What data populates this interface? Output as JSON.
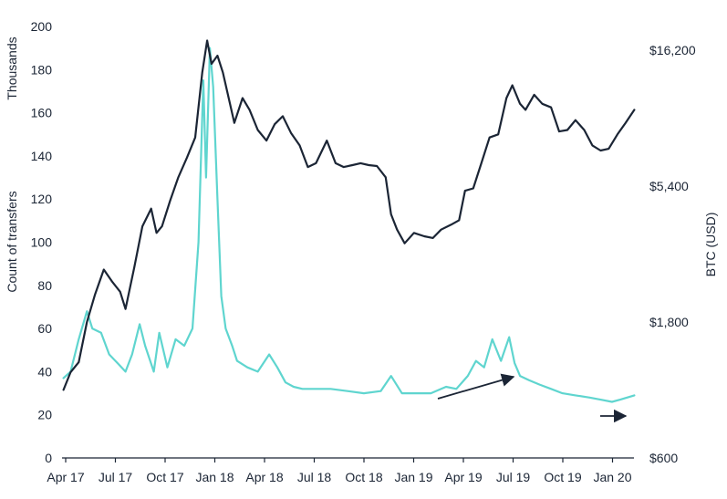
{
  "chart_data": {
    "type": "line",
    "x_ticks": [
      "Apr 17",
      "Jul 17",
      "Oct 17",
      "Jan 18",
      "Apr 18",
      "Jul 18",
      "Oct 18",
      "Jan 19",
      "Apr 19",
      "Jul 19",
      "Oct 19",
      "Jan 20"
    ],
    "y_left": {
      "unit_label": "Thousands",
      "label": "Count of transfers",
      "ticks": [
        "0",
        "20",
        "40",
        "60",
        "80",
        "100",
        "120",
        "140",
        "160",
        "180",
        "200"
      ],
      "range": [
        0,
        200
      ]
    },
    "y_right": {
      "label": "BTC (USD)",
      "scale": "log",
      "ticks": [
        "$600",
        "$1,800",
        "$5,400",
        "$16,200"
      ],
      "range": [
        600,
        16200
      ]
    },
    "grid": false,
    "series": [
      {
        "axis": "right",
        "color": "#1b2535",
        "x": [
          "2017-03-28",
          "2017-04-10",
          "2017-04-25",
          "2017-05-10",
          "2017-05-25",
          "2017-06-10",
          "2017-06-25",
          "2017-07-10",
          "2017-07-20",
          "2017-08-05",
          "2017-08-20",
          "2017-09-05",
          "2017-09-15",
          "2017-09-25",
          "2017-10-10",
          "2017-10-25",
          "2017-11-10",
          "2017-11-25",
          "2017-12-08",
          "2017-12-17",
          "2017-12-25",
          "2018-01-05",
          "2018-01-15",
          "2018-02-05",
          "2018-02-20",
          "2018-03-05",
          "2018-03-20",
          "2018-04-05",
          "2018-04-20",
          "2018-05-05",
          "2018-05-20",
          "2018-06-05",
          "2018-06-20",
          "2018-07-05",
          "2018-07-25",
          "2018-08-10",
          "2018-08-25",
          "2018-09-10",
          "2018-09-25",
          "2018-10-10",
          "2018-10-25",
          "2018-11-10",
          "2018-11-20",
          "2018-12-01",
          "2018-12-15",
          "2019-01-01",
          "2019-01-20",
          "2019-02-05",
          "2019-02-20",
          "2019-03-10",
          "2019-03-25",
          "2019-04-05",
          "2019-04-20",
          "2019-05-05",
          "2019-05-20",
          "2019-06-05",
          "2019-06-20",
          "2019-07-01",
          "2019-07-15",
          "2019-07-25",
          "2019-08-10",
          "2019-08-25",
          "2019-09-10",
          "2019-09-25",
          "2019-10-10",
          "2019-10-25",
          "2019-11-10",
          "2019-11-25",
          "2019-12-10",
          "2019-12-25",
          "2020-01-10",
          "2020-01-25",
          "2020-02-10"
        ],
        "values": [
          1040,
          1200,
          1300,
          1800,
          2250,
          2750,
          2500,
          2300,
          2000,
          2800,
          3900,
          4500,
          3700,
          3900,
          4800,
          5800,
          6800,
          8000,
          13500,
          17500,
          14500,
          15500,
          13500,
          9000,
          11000,
          10000,
          8500,
          7800,
          8900,
          9500,
          8300,
          7500,
          6300,
          6500,
          7800,
          6500,
          6300,
          6400,
          6500,
          6400,
          6350,
          5800,
          4300,
          3800,
          3400,
          3700,
          3600,
          3550,
          3800,
          3950,
          4100,
          5200,
          5300,
          6500,
          8000,
          8200,
          11000,
          12200,
          10500,
          10000,
          11300,
          10500,
          10200,
          8400,
          8500,
          9200,
          8500,
          7500,
          7200,
          7300,
          8200,
          9000,
          10000
        ]
      },
      {
        "axis": "left",
        "color": "#5fd5cf",
        "x": [
          "2017-03-28",
          "2017-04-10",
          "2017-04-25",
          "2017-05-10",
          "2017-05-20",
          "2017-06-05",
          "2017-06-20",
          "2017-07-05",
          "2017-07-20",
          "2017-08-01",
          "2017-08-15",
          "2017-08-25",
          "2017-09-10",
          "2017-09-20",
          "2017-10-05",
          "2017-10-20",
          "2017-11-05",
          "2017-11-20",
          "2017-12-01",
          "2017-12-10",
          "2017-12-15",
          "2017-12-22",
          "2017-12-28",
          "2018-01-05",
          "2018-01-12",
          "2018-01-20",
          "2018-02-01",
          "2018-02-10",
          "2018-03-01",
          "2018-03-20",
          "2018-04-10",
          "2018-04-25",
          "2018-05-10",
          "2018-05-25",
          "2018-06-10",
          "2018-07-01",
          "2018-08-01",
          "2018-09-01",
          "2018-10-01",
          "2018-11-01",
          "2018-11-20",
          "2018-12-10",
          "2019-01-01",
          "2019-02-01",
          "2019-03-01",
          "2019-03-20",
          "2019-04-10",
          "2019-04-25",
          "2019-05-10",
          "2019-05-25",
          "2019-06-10",
          "2019-06-25",
          "2019-07-05",
          "2019-07-15",
          "2019-08-01",
          "2019-08-20",
          "2019-09-10",
          "2019-10-01",
          "2019-10-25",
          "2019-11-20",
          "2019-12-10",
          "2019-12-31",
          "2020-01-15",
          "2020-02-10"
        ],
        "values": [
          37,
          40,
          55,
          68,
          60,
          58,
          48,
          44,
          40,
          48,
          62,
          52,
          40,
          58,
          42,
          55,
          52,
          60,
          100,
          175,
          130,
          190,
          172,
          120,
          75,
          60,
          52,
          45,
          42,
          40,
          48,
          42,
          35,
          33,
          32,
          32,
          32,
          31,
          30,
          31,
          38,
          30,
          30,
          30,
          33,
          32,
          38,
          45,
          42,
          55,
          45,
          56,
          44,
          38,
          36,
          34,
          32,
          30,
          29,
          28,
          27,
          26,
          27,
          29
        ]
      }
    ],
    "annotations": [
      "arrow pointing up-right",
      "arrow pointing right"
    ]
  }
}
